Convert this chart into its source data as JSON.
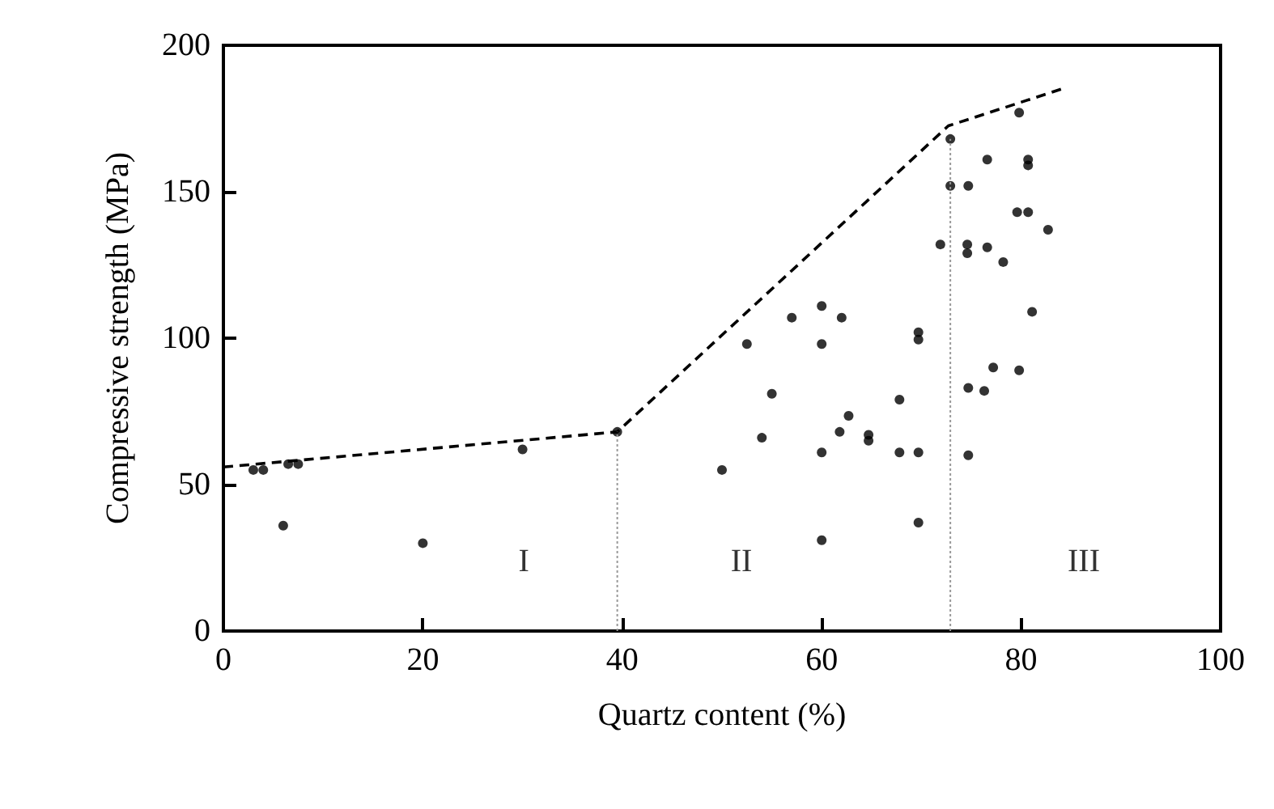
{
  "chart_data": {
    "type": "scatter",
    "xlabel": "Quartz content (%)",
    "ylabel": "Compressive strength (MPa)",
    "xlim": [
      0,
      100
    ],
    "xticks": [
      0,
      20,
      40,
      60,
      80,
      100
    ],
    "ylim": [
      0,
      200
    ],
    "yticks": [
      0,
      50,
      100,
      150,
      200
    ],
    "grid": false,
    "marker": "circle",
    "series": [
      {
        "color": "#000000",
        "x": [
          3,
          4,
          6.5,
          7.5,
          6,
          20,
          30,
          39.5,
          50,
          54,
          52.5,
          55,
          57,
          60,
          60,
          62,
          60,
          60,
          61.8,
          62.7,
          64.7,
          64.7,
          67.8,
          67.8,
          69.7,
          69.7,
          69.7,
          69.7,
          71.9,
          74.6,
          74.6,
          76.6,
          78.2,
          74.7,
          76.3,
          77.2,
          74.7,
          72.9,
          72.9,
          74.7,
          76.6,
          79.8,
          80.7,
          80.7,
          79.6,
          80.7,
          82.7,
          81.1,
          79.8
        ],
        "values": [
          55,
          55,
          57,
          57,
          36,
          30,
          62,
          68,
          55,
          66,
          98,
          81,
          107,
          111,
          98,
          107,
          61,
          31,
          68,
          73.5,
          67,
          65,
          79,
          61,
          61,
          37,
          102,
          99.5,
          132,
          132,
          129,
          131,
          126,
          83,
          82,
          90,
          60,
          168,
          152,
          152,
          161,
          177,
          161,
          159,
          143,
          143,
          137,
          109,
          89
        ]
      },
      {
        "type": "line",
        "color": "#000000",
        "line_style": "dashed",
        "marker": "none",
        "x": [
          0,
          39.5,
          72.7,
          84
        ],
        "values": [
          56,
          68,
          172.5,
          185
        ]
      },
      {
        "type": "line",
        "color": "#999999",
        "line_style": "dotted",
        "marker": "none",
        "x": [
          39.5,
          39.5
        ],
        "values": [
          0,
          68
        ]
      },
      {
        "type": "line",
        "color": "#999999",
        "line_style": "dotted",
        "marker": "none",
        "x": [
          72.9,
          72.9
        ],
        "values": [
          0,
          168
        ]
      }
    ],
    "annotations": [
      "I",
      "II",
      "III"
    ]
  }
}
